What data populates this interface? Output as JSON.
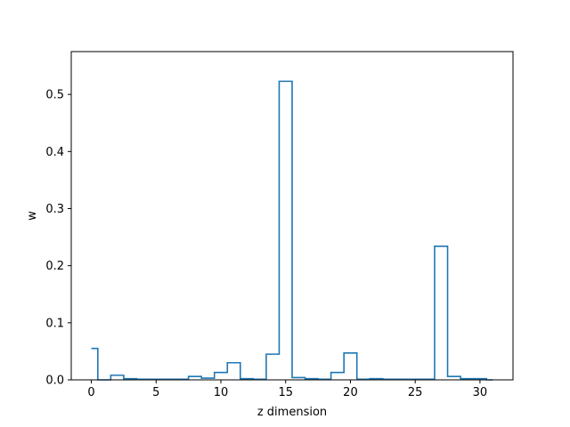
{
  "chart_data": {
    "type": "step",
    "title": "",
    "xlabel": "z dimension",
    "ylabel": "w",
    "xlim": [
      -1.55,
      32.55
    ],
    "ylim": [
      0,
      0.575
    ],
    "grid": false,
    "x_ticks": [
      0,
      5,
      10,
      15,
      20,
      25,
      30
    ],
    "x_tick_labels": [
      "0",
      "5",
      "10",
      "15",
      "20",
      "25",
      "30"
    ],
    "y_ticks": [
      0.0,
      0.1,
      0.2,
      0.3,
      0.4,
      0.5
    ],
    "y_tick_labels": [
      "0.0",
      "0.1",
      "0.2",
      "0.3",
      "0.4",
      "0.5"
    ],
    "series": [
      {
        "color": "#1f77b4",
        "x": [
          0,
          1,
          2,
          3,
          4,
          5,
          6,
          7,
          8,
          9,
          10,
          11,
          12,
          13,
          14,
          15,
          16,
          17,
          18,
          19,
          20,
          21,
          22,
          23,
          24,
          25,
          26,
          27,
          28,
          29,
          30,
          31
        ],
        "values": [
          0.055,
          0.0,
          0.008,
          0.002,
          0.001,
          0.001,
          0.001,
          0.001,
          0.006,
          0.003,
          0.013,
          0.03,
          0.002,
          0.001,
          0.045,
          0.523,
          0.004,
          0.002,
          0.001,
          0.013,
          0.047,
          0.001,
          0.002,
          0.001,
          0.001,
          0.001,
          0.001,
          0.234,
          0.006,
          0.002,
          0.002,
          0.0
        ]
      }
    ]
  }
}
